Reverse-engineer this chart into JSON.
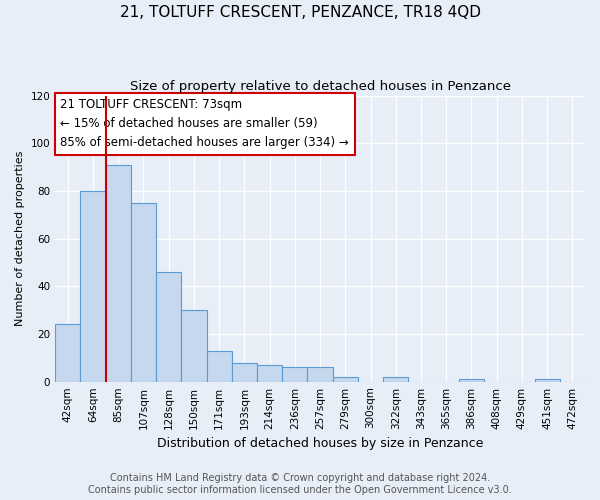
{
  "title": "21, TOLTUFF CRESCENT, PENZANCE, TR18 4QD",
  "subtitle": "Size of property relative to detached houses in Penzance",
  "xlabel": "Distribution of detached houses by size in Penzance",
  "ylabel": "Number of detached properties",
  "categories": [
    "42sqm",
    "64sqm",
    "85sqm",
    "107sqm",
    "128sqm",
    "150sqm",
    "171sqm",
    "193sqm",
    "214sqm",
    "236sqm",
    "257sqm",
    "279sqm",
    "300sqm",
    "322sqm",
    "343sqm",
    "365sqm",
    "386sqm",
    "408sqm",
    "429sqm",
    "451sqm",
    "472sqm"
  ],
  "values": [
    24,
    80,
    91,
    75,
    46,
    30,
    13,
    8,
    7,
    6,
    6,
    2,
    0,
    2,
    0,
    0,
    1,
    0,
    0,
    1,
    0
  ],
  "bar_color": "#c5d8ed",
  "bar_edge_color": "#5b9bd5",
  "property_line_x": 0.5,
  "property_line_color": "#cc0000",
  "annotation_text": "21 TOLTUFF CRESCENT: 73sqm\n← 15% of detached houses are smaller (59)\n85% of semi-detached houses are larger (334) →",
  "annotation_box_color": "#ffffff",
  "annotation_box_edge": "#cc0000",
  "ylim": [
    0,
    120
  ],
  "yticks": [
    0,
    20,
    40,
    60,
    80,
    100,
    120
  ],
  "footer_line1": "Contains HM Land Registry data © Crown copyright and database right 2024.",
  "footer_line2": "Contains public sector information licensed under the Open Government Licence v3.0.",
  "background_color": "#e8eef8",
  "plot_background": "#e8eef8",
  "title_fontsize": 11,
  "subtitle_fontsize": 9.5,
  "annotation_fontsize": 8.5,
  "ylabel_fontsize": 8,
  "xlabel_fontsize": 9,
  "tick_fontsize": 7.5,
  "footer_fontsize": 7
}
